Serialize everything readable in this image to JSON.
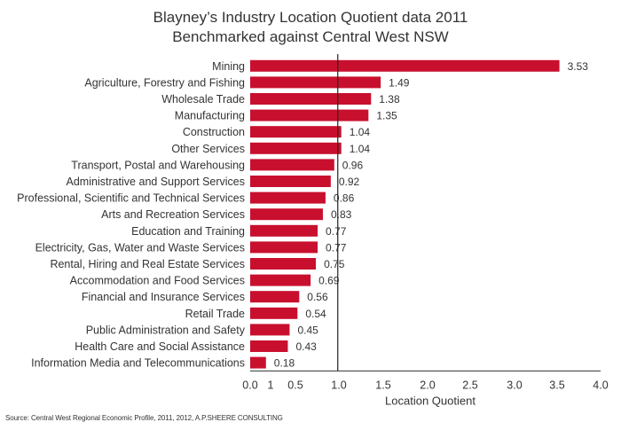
{
  "chart_data": {
    "type": "bar",
    "orientation": "horizontal",
    "title": [
      "Blayney’s Industry Location Quotient data 2011",
      "Benchmarked against Central West NSW"
    ],
    "xlabel": "Location Quotient",
    "ylabel": "",
    "xlim": [
      0,
      4.0
    ],
    "x_ticks": [
      "0.0",
      "1",
      "0.5",
      "1.0",
      "1.5",
      "2.0",
      "2.5",
      "3.0",
      "3.5",
      "4.0"
    ],
    "reference_line": 1.0,
    "grid": false,
    "bar_color": "#c8102e",
    "categories": [
      "Mining",
      "Agriculture, Forestry and Fishing",
      "Wholesale Trade",
      "Manufacturing",
      "Construction",
      "Other Services",
      "Transport, Postal and Warehousing",
      "Administrative and Support Services",
      "Professional, Scientific and Technical Services",
      "Arts and Recreation Services",
      "Education and Training",
      "Electricity, Gas, Water and Waste Services",
      "Rental, Hiring and Real Estate Services",
      "Accommodation and Food Services",
      "Financial and Insurance Services",
      "Retail Trade",
      "Public Administration and Safety",
      "Health Care and Social Assistance",
      "Information Media and Telecommunications"
    ],
    "values": [
      3.53,
      1.49,
      1.38,
      1.35,
      1.04,
      1.04,
      0.96,
      0.92,
      0.86,
      0.83,
      0.77,
      0.77,
      0.75,
      0.69,
      0.56,
      0.54,
      0.45,
      0.43,
      0.18
    ],
    "value_labels": [
      "3.53",
      "1.49",
      "1.38",
      "1.35",
      "1.04",
      "1.04",
      "0.96",
      "0.92",
      "0.86",
      "0.83",
      "0.77",
      "0.77",
      "0.75",
      "0.69",
      "0.56",
      "0.54",
      "0.45",
      "0.43",
      "0.18"
    ]
  },
  "source": "Source: Central West Regional Economic Profile, 2011, 2012, A.P.SHEERE CONSULTING"
}
